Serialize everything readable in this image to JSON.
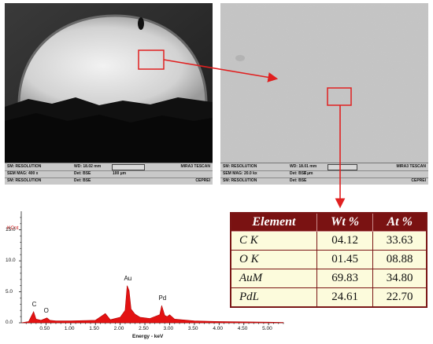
{
  "sem_left": {
    "info": {
      "sm_label": "SM: RESOLUTION",
      "wd": "WD: 18.02 mm",
      "brand": "MIRA3 TESCAN",
      "mag": "SEM MAG: 400 x",
      "det1": "Det: BSE",
      "scale": "100 µm",
      "sm_label2": "SM: RESOLUTION",
      "det2": "Det: BSE",
      "lab": "CEPREI"
    }
  },
  "sem_right": {
    "info": {
      "sm_label": "SM: RESOLUTION",
      "wd": "WD: 18.01 mm",
      "brand": "MIRA3 TESCAN",
      "mag": "SEM MAG: 20.0 kx",
      "det1": "Det: BSE",
      "scale": "2 µm",
      "sm_label2": "SM: RESOLUTION",
      "det2": "Det: BSE",
      "lab": "CEPREI"
    }
  },
  "spectrum": {
    "ylabel": "KCnt",
    "xlabel": "Energy - keV",
    "y_ticks": [
      "0.0",
      "5.0",
      "10.0",
      "15.0"
    ],
    "x_ticks": [
      "0.50",
      "1.00",
      "1.50",
      "2.00",
      "2.50",
      "3.00",
      "3.50",
      "4.00",
      "4.50",
      "5.00"
    ],
    "peak_labels": [
      "C",
      "O",
      "Au",
      "Pd"
    ]
  },
  "chart_data": {
    "type": "area",
    "xlabel": "Energy - keV",
    "ylabel": "KCnt",
    "xlim": [
      0.0,
      5.3
    ],
    "ylim": [
      0,
      18
    ],
    "x": [
      0.0,
      0.15,
      0.25,
      0.3,
      0.4,
      0.52,
      0.58,
      0.7,
      1.0,
      1.5,
      1.7,
      1.8,
      2.0,
      2.1,
      2.14,
      2.18,
      2.22,
      2.3,
      2.4,
      2.6,
      2.8,
      2.84,
      2.9,
      2.95,
      3.0,
      3.1,
      3.5,
      4.0,
      4.5,
      5.0,
      5.3
    ],
    "y": [
      0,
      0.2,
      1.8,
      0.6,
      0.4,
      0.8,
      0.4,
      0.3,
      0.3,
      0.4,
      1.5,
      0.5,
      0.9,
      2.0,
      6.0,
      5.2,
      2.2,
      1.4,
      0.9,
      0.7,
      1.3,
      2.8,
      1.2,
      1.0,
      1.3,
      0.6,
      0.3,
      0.2,
      0.15,
      0.1,
      0.05
    ],
    "peaks": [
      {
        "label": "C",
        "x": 0.28,
        "y": 1.8
      },
      {
        "label": "O",
        "x": 0.52,
        "y": 0.8
      },
      {
        "label": "Au",
        "x": 2.14,
        "y": 6.0
      },
      {
        "label": "Pd",
        "x": 2.84,
        "y": 2.8
      }
    ]
  },
  "table": {
    "headers": [
      "Element",
      "Wt %",
      "At %"
    ],
    "rows": [
      {
        "element": "C K",
        "wt": "04.12",
        "at": "33.63"
      },
      {
        "element": "O K",
        "wt": "01.45",
        "at": "08.88"
      },
      {
        "element": "AuM",
        "wt": "69.83",
        "at": "34.80"
      },
      {
        "element": "PdL",
        "wt": "24.61",
        "at": "22.70"
      }
    ]
  },
  "colors": {
    "spectrum_fill": "#e31212",
    "arrow": "#e02020",
    "table_header_bg": "#7a1212",
    "table_cell_bg": "#fcfbdc"
  }
}
